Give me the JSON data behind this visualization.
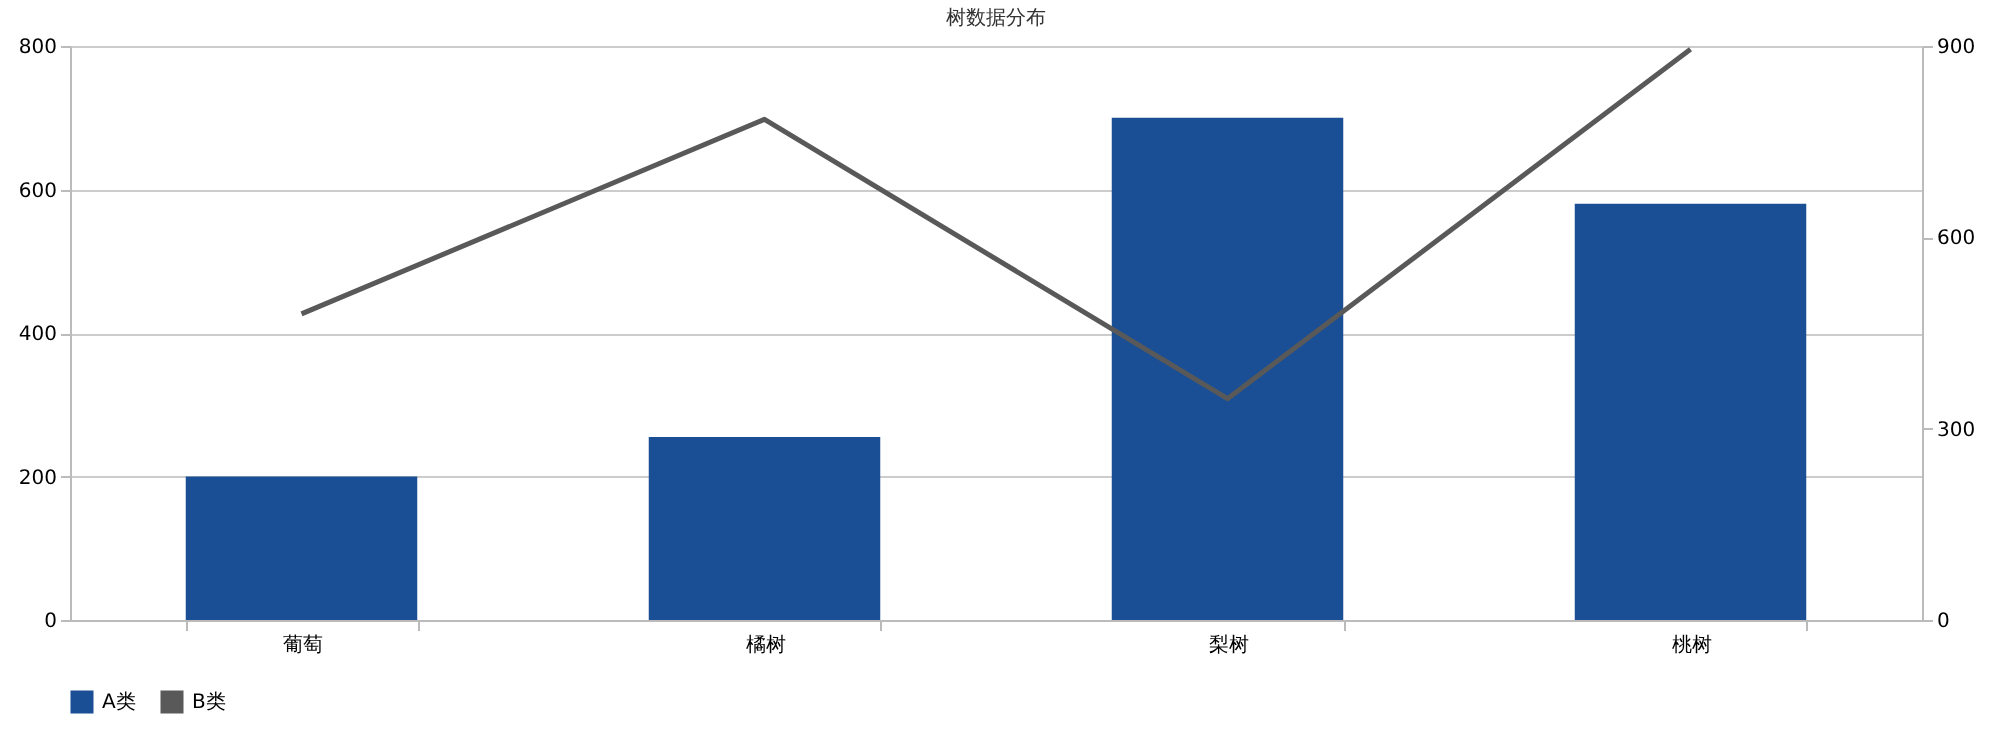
{
  "chart_data": {
    "type": "bar",
    "title": "树数据分布",
    "categories": [
      "葡萄",
      "橘树",
      "梨树",
      "桃树"
    ],
    "series": [
      {
        "name": "A类",
        "color": "#1a4f95",
        "values": [
          200,
          255,
          700,
          580
        ]
      },
      {
        "name": "B类",
        "type": "line",
        "axis": "y2",
        "color": "#595959",
        "values": [
          480,
          785,
          347,
          895
        ]
      }
    ],
    "ylim": [
      0,
      800
    ],
    "yticks": [
      0,
      200,
      400,
      600,
      800
    ],
    "y2lim": [
      0,
      900
    ],
    "y2ticks": [
      0,
      300,
      600,
      900
    ],
    "grid": "y",
    "legend": "bottom"
  }
}
